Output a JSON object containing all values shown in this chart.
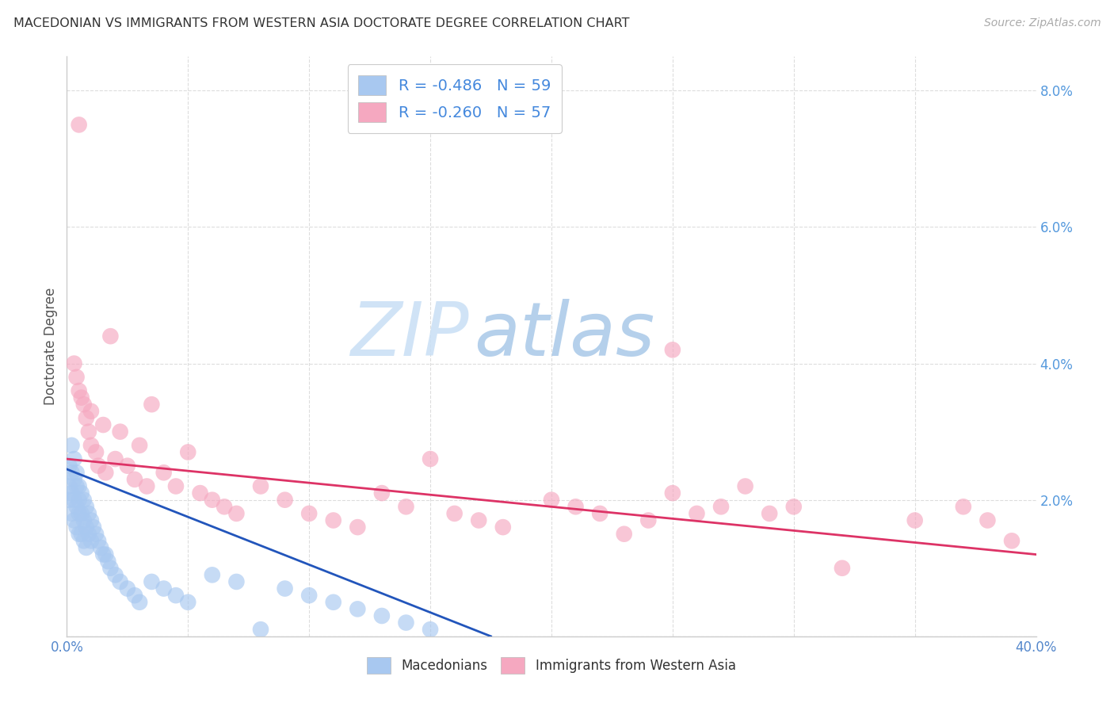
{
  "title": "MACEDONIAN VS IMMIGRANTS FROM WESTERN ASIA DOCTORATE DEGREE CORRELATION CHART",
  "source": "Source: ZipAtlas.com",
  "ylabel": "Doctorate Degree",
  "xlim": [
    0.0,
    0.4
  ],
  "ylim": [
    0.0,
    0.085
  ],
  "xticks": [
    0.0,
    0.05,
    0.1,
    0.15,
    0.2,
    0.25,
    0.3,
    0.35,
    0.4
  ],
  "xticklabels": [
    "0.0%",
    "",
    "",
    "",
    "",
    "",
    "",
    "",
    "40.0%"
  ],
  "yticks_right": [
    0.0,
    0.02,
    0.04,
    0.06,
    0.08
  ],
  "yticklabels_right": [
    "",
    "2.0%",
    "4.0%",
    "6.0%",
    "8.0%"
  ],
  "legend1_label": "R = -0.486   N = 59",
  "legend2_label": "R = -0.260   N = 57",
  "blue_color": "#a8c8f0",
  "pink_color": "#f5a8c0",
  "trendline_blue": "#2255bb",
  "trendline_pink": "#dd3366",
  "watermark_zip": "ZIP",
  "watermark_atlas": "atlas",
  "legend_bottom_label1": "Macedonians",
  "legend_bottom_label2": "Immigrants from Western Asia",
  "blue_x": [
    0.001,
    0.001,
    0.001,
    0.002,
    0.002,
    0.002,
    0.002,
    0.003,
    0.003,
    0.003,
    0.003,
    0.004,
    0.004,
    0.004,
    0.004,
    0.005,
    0.005,
    0.005,
    0.005,
    0.006,
    0.006,
    0.006,
    0.007,
    0.007,
    0.007,
    0.008,
    0.008,
    0.008,
    0.009,
    0.009,
    0.01,
    0.01,
    0.011,
    0.012,
    0.013,
    0.014,
    0.015,
    0.016,
    0.017,
    0.018,
    0.02,
    0.022,
    0.025,
    0.028,
    0.03,
    0.035,
    0.04,
    0.045,
    0.05,
    0.06,
    0.07,
    0.08,
    0.09,
    0.1,
    0.11,
    0.12,
    0.13,
    0.14,
    0.15
  ],
  "blue_y": [
    0.025,
    0.022,
    0.02,
    0.028,
    0.024,
    0.021,
    0.018,
    0.026,
    0.023,
    0.02,
    0.017,
    0.024,
    0.022,
    0.019,
    0.016,
    0.022,
    0.02,
    0.018,
    0.015,
    0.021,
    0.018,
    0.015,
    0.02,
    0.017,
    0.014,
    0.019,
    0.016,
    0.013,
    0.018,
    0.015,
    0.017,
    0.014,
    0.016,
    0.015,
    0.014,
    0.013,
    0.012,
    0.012,
    0.011,
    0.01,
    0.009,
    0.008,
    0.007,
    0.006,
    0.005,
    0.008,
    0.007,
    0.006,
    0.005,
    0.009,
    0.008,
    0.001,
    0.007,
    0.006,
    0.005,
    0.004,
    0.003,
    0.002,
    0.001
  ],
  "pink_x": [
    0.003,
    0.004,
    0.005,
    0.005,
    0.006,
    0.007,
    0.008,
    0.009,
    0.01,
    0.01,
    0.012,
    0.013,
    0.015,
    0.016,
    0.018,
    0.02,
    0.022,
    0.025,
    0.028,
    0.03,
    0.033,
    0.035,
    0.04,
    0.045,
    0.05,
    0.055,
    0.06,
    0.065,
    0.07,
    0.08,
    0.09,
    0.1,
    0.11,
    0.12,
    0.13,
    0.14,
    0.15,
    0.16,
    0.17,
    0.18,
    0.2,
    0.21,
    0.22,
    0.23,
    0.24,
    0.25,
    0.26,
    0.27,
    0.28,
    0.29,
    0.3,
    0.32,
    0.35,
    0.37,
    0.38,
    0.39,
    0.25
  ],
  "pink_y": [
    0.04,
    0.038,
    0.075,
    0.036,
    0.035,
    0.034,
    0.032,
    0.03,
    0.028,
    0.033,
    0.027,
    0.025,
    0.031,
    0.024,
    0.044,
    0.026,
    0.03,
    0.025,
    0.023,
    0.028,
    0.022,
    0.034,
    0.024,
    0.022,
    0.027,
    0.021,
    0.02,
    0.019,
    0.018,
    0.022,
    0.02,
    0.018,
    0.017,
    0.016,
    0.021,
    0.019,
    0.026,
    0.018,
    0.017,
    0.016,
    0.02,
    0.019,
    0.018,
    0.015,
    0.017,
    0.021,
    0.018,
    0.019,
    0.022,
    0.018,
    0.019,
    0.01,
    0.017,
    0.019,
    0.017,
    0.014,
    0.042
  ],
  "trendline_blue_start_x": 0.0,
  "trendline_blue_end_x": 0.175,
  "trendline_blue_start_y": 0.0245,
  "trendline_blue_end_y": 0.0,
  "trendline_pink_start_x": 0.0,
  "trendline_pink_end_x": 0.4,
  "trendline_pink_start_y": 0.026,
  "trendline_pink_end_y": 0.012
}
